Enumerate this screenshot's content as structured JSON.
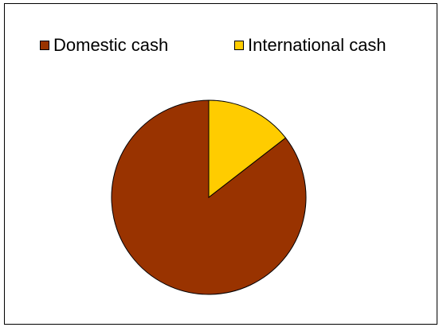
{
  "chart_data": {
    "type": "pie",
    "title": "",
    "categories": [
      "Domestic cash",
      "International cash"
    ],
    "values": [
      85.5,
      14.5
    ],
    "colors": [
      "#993300",
      "#FFCC00"
    ],
    "start_angle_deg": 0,
    "direction": "counterclockwise",
    "legend_position": "top"
  }
}
